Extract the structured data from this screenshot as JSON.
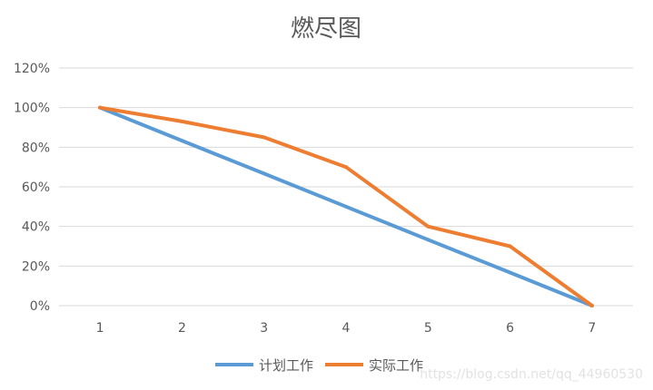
{
  "chart_data": {
    "type": "line",
    "title": "燃尽图",
    "x": [
      1,
      2,
      3,
      4,
      5,
      6,
      7
    ],
    "ylim": [
      0,
      120
    ],
    "yticks": [
      0,
      20,
      40,
      60,
      80,
      100,
      120
    ],
    "ytick_labels": [
      "0%",
      "20%",
      "40%",
      "60%",
      "80%",
      "100%",
      "120%"
    ],
    "grid": true,
    "legend_position": "bottom",
    "series": [
      {
        "name": "计划工作",
        "color": "#5b9bd5",
        "values": [
          100,
          83.3,
          66.7,
          50,
          33.3,
          16.7,
          0
        ]
      },
      {
        "name": "实际工作",
        "color": "#ed7d31",
        "values": [
          100,
          93,
          85,
          70,
          40,
          30,
          0
        ]
      }
    ]
  },
  "watermark": "https://blog.csdn.net/qq_44960530"
}
